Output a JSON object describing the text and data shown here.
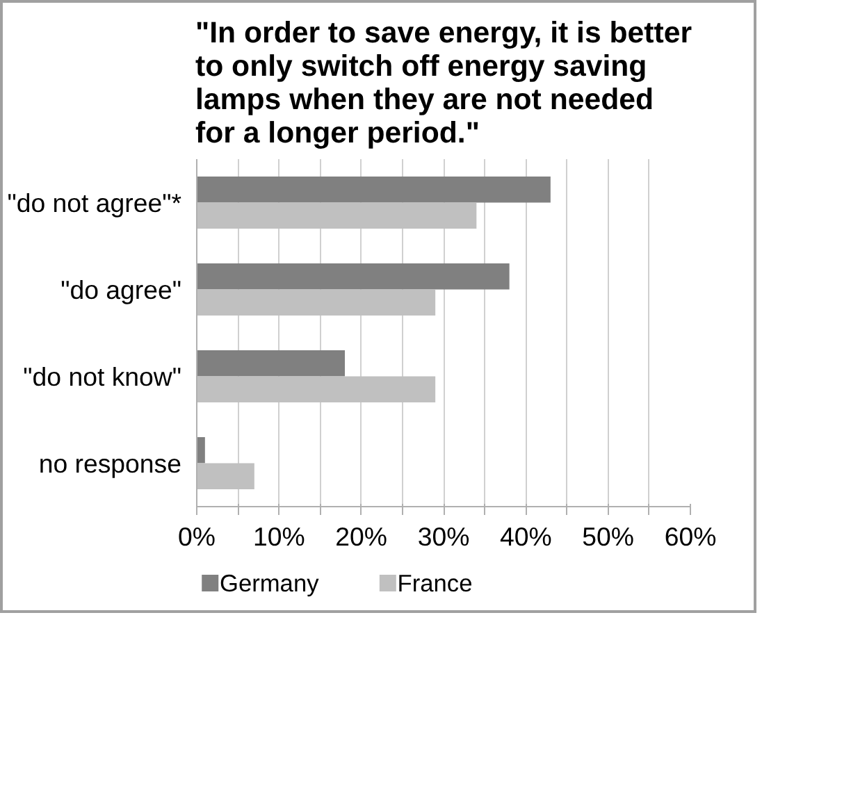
{
  "chart_data": {
    "type": "bar",
    "orientation": "horizontal",
    "title": "\"In order to save energy, it is better\nto only switch off energy saving\nlamps when they are not needed\nfor a longer period.\"",
    "categories": [
      "\"do not agree\"*",
      "\"do agree\"",
      "\"do not know\"",
      "no response"
    ],
    "series": [
      {
        "name": "Germany",
        "color": "#808080",
        "values": [
          43,
          38,
          18,
          1
        ]
      },
      {
        "name": "France",
        "color": "#c0c0c0",
        "values": [
          34,
          29,
          29,
          7
        ]
      }
    ],
    "xlim": [
      0,
      60
    ],
    "xticks": [
      {
        "value": 0,
        "label": "0%"
      },
      {
        "value": 5,
        "label": null
      },
      {
        "value": 10,
        "label": "10%"
      },
      {
        "value": 15,
        "label": null
      },
      {
        "value": 20,
        "label": "20%"
      },
      {
        "value": 25,
        "label": null
      },
      {
        "value": 30,
        "label": "30%"
      },
      {
        "value": 35,
        "label": null
      },
      {
        "value": 40,
        "label": "40%"
      },
      {
        "value": 45,
        "label": null
      },
      {
        "value": 50,
        "label": "50%"
      },
      {
        "value": 55,
        "label": null
      },
      {
        "value": 60,
        "label": "60%"
      }
    ],
    "grid": "x",
    "legend": "bottom left"
  }
}
